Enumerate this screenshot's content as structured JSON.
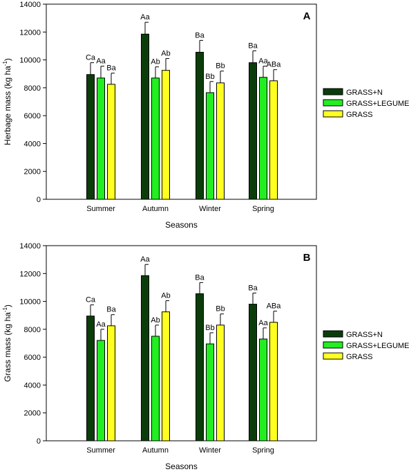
{
  "chart_data": [
    {
      "type": "bar",
      "panel_label": "A",
      "ylabel": "Herbage mass (kg ha",
      "ylabel_sup": "-1",
      "ylabel_close": ")",
      "xlabel": "Seasons",
      "categories": [
        "Summer",
        "Autumn",
        "Winter",
        "Spring"
      ],
      "ylim": [
        0,
        14000
      ],
      "yticks": [
        0,
        2000,
        4000,
        6000,
        8000,
        10000,
        12000,
        14000
      ],
      "legend_position": "right",
      "series": [
        {
          "name": "GRASS+N",
          "color": "#0b3d0b",
          "values": [
            8950,
            11850,
            10550,
            9800
          ],
          "errors": [
            850,
            850,
            850,
            850
          ],
          "letters": [
            "Ca",
            "Aa",
            "Ba",
            "Ba"
          ]
        },
        {
          "name": "GRASS+LEGUME",
          "color": "#22ee22",
          "values": [
            8700,
            8700,
            7650,
            8750
          ],
          "errors": [
            850,
            800,
            800,
            800
          ],
          "letters": [
            "Aa",
            "Ab",
            "Bb",
            "Aa"
          ]
        },
        {
          "name": "GRASS",
          "color": "#ffff22",
          "values": [
            8250,
            9250,
            8350,
            8500
          ],
          "errors": [
            800,
            850,
            850,
            800
          ],
          "letters": [
            "Ba",
            "Ab",
            "Bb",
            "ABa"
          ]
        }
      ]
    },
    {
      "type": "bar",
      "panel_label": "B",
      "ylabel": "Grass mass (kg ha",
      "ylabel_sup": "-1",
      "ylabel_close": ")",
      "xlabel": "Seasons",
      "categories": [
        "Summer",
        "Autumn",
        "Winter",
        "Spring"
      ],
      "ylim": [
        0,
        14000
      ],
      "yticks": [
        0,
        2000,
        4000,
        6000,
        8000,
        10000,
        12000,
        14000
      ],
      "legend_position": "right",
      "series": [
        {
          "name": "GRASS+N",
          "color": "#0b3d0b",
          "values": [
            8950,
            11850,
            10550,
            9800
          ],
          "errors": [
            800,
            800,
            800,
            800
          ],
          "letters": [
            "Ca",
            "Aa",
            "Ba",
            "Ba"
          ]
        },
        {
          "name": "GRASS+LEGUME",
          "color": "#22ee22",
          "values": [
            7200,
            7500,
            6950,
            7300
          ],
          "errors": [
            800,
            800,
            800,
            800
          ],
          "letters": [
            "Aa",
            "Ab",
            "Bb",
            "Aa"
          ]
        },
        {
          "name": "GRASS",
          "color": "#ffff22",
          "values": [
            8250,
            9250,
            8300,
            8500
          ],
          "errors": [
            800,
            800,
            800,
            800
          ],
          "letters": [
            "Ba",
            "Ab",
            "Bb",
            "ABa"
          ]
        }
      ]
    }
  ]
}
